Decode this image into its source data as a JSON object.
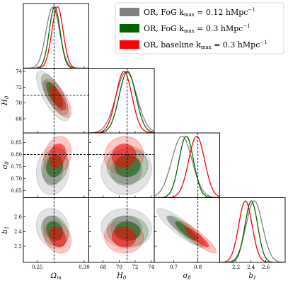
{
  "chart_data": {
    "type": "corner",
    "legend": {
      "placement": "top-right",
      "entries": [
        {
          "label": "OR, FoG k",
          "sub": "max",
          "rest": " = 0.12 hMpc",
          "sup": "−1",
          "color": "#808080"
        },
        {
          "label": "OR, FoG k",
          "sub": "max",
          "rest": " = 0.3 hMpc",
          "sup": "−1",
          "color": "#006400"
        },
        {
          "label": "OR, baseline k",
          "sub": "max",
          "rest": " = 0.3 hMpc",
          "sup": "−1",
          "color": "#ff0000"
        }
      ]
    },
    "parameters": [
      {
        "name": "Omega_m",
        "label": "Ωm",
        "truth": 0.2678,
        "range": [
          0.235,
          0.305
        ],
        "ticks": [
          0.25,
          0.3
        ],
        "tick_labels": [
          "0.25",
          "0.30"
        ]
      },
      {
        "name": "H0",
        "label": "H0",
        "truth": 71.0,
        "range": [
          66.2,
          74.4
        ],
        "ticks": [
          68,
          70,
          72,
          74
        ],
        "tick_labels": [
          "68",
          "70",
          "72",
          "74"
        ]
      },
      {
        "name": "sigma8",
        "label": "σ8",
        "truth": 0.8,
        "range": [
          0.62,
          0.89
        ],
        "ticks": [
          0.7,
          0.8
        ],
        "tick_labels": [
          "0.7",
          "0.8"
        ],
        "y_ticks": [
          0.65,
          0.7,
          0.75,
          0.8,
          0.85
        ],
        "y_tick_labels": [
          "0.65",
          "0.70",
          "0.75",
          "0.80",
          "0.85"
        ]
      },
      {
        "name": "b1",
        "label": "b1",
        "truth": null,
        "range": [
          1.98,
          2.86
        ],
        "ticks": [
          2.2,
          2.4,
          2.6
        ],
        "tick_labels": [
          "2.2",
          "2.4",
          "2.6"
        ]
      }
    ],
    "series": [
      {
        "name": "OR, FoG kmax = 0.12 hMpc^-1",
        "color": "#808080",
        "mean": {
          "Omega_m": 0.2665,
          "H0": 70.9,
          "sigma8": 0.734,
          "b1": 2.445
        },
        "sigma": {
          "Omega_m": 0.0072,
          "H0": 1.3,
          "sigma8": 0.042,
          "b1": 0.11
        },
        "corr": {
          "Omega_m-H0": -0.75,
          "Omega_m-sigma8": 0.1,
          "Omega_m-b1": -0.15,
          "H0-sigma8": 0.05,
          "H0-b1": -0.05,
          "sigma8-b1": -0.88
        }
      },
      {
        "name": "OR, FoG kmax = 0.3 hMpc^-1",
        "color": "#006400",
        "mean": {
          "Omega_m": 0.2685,
          "H0": 71.05,
          "sigma8": 0.752,
          "b1": 2.405
        },
        "sigma": {
          "Omega_m": 0.0058,
          "H0": 1.05,
          "sigma8": 0.03,
          "b1": 0.085
        },
        "corr": {
          "Omega_m-H0": -0.72,
          "Omega_m-sigma8": 0.15,
          "Omega_m-b1": -0.2,
          "H0-sigma8": 0.05,
          "H0-b1": -0.05,
          "sigma8-b1": -0.88
        }
      },
      {
        "name": "OR, baseline kmax = 0.3 hMpc^-1",
        "color": "#ff0000",
        "mean": {
          "Omega_m": 0.2715,
          "H0": 70.6,
          "sigma8": 0.795,
          "b1": 2.325
        },
        "sigma": {
          "Omega_m": 0.006,
          "H0": 1.0,
          "sigma8": 0.033,
          "b1": 0.09
        },
        "corr": {
          "Omega_m-H0": -0.72,
          "Omega_m-sigma8": 0.2,
          "Omega_m-b1": -0.25,
          "H0-sigma8": 0.05,
          "H0-b1": -0.05,
          "sigma8-b1": -0.9
        }
      }
    ],
    "contour_levels": [
      "68%",
      "95%"
    ]
  }
}
